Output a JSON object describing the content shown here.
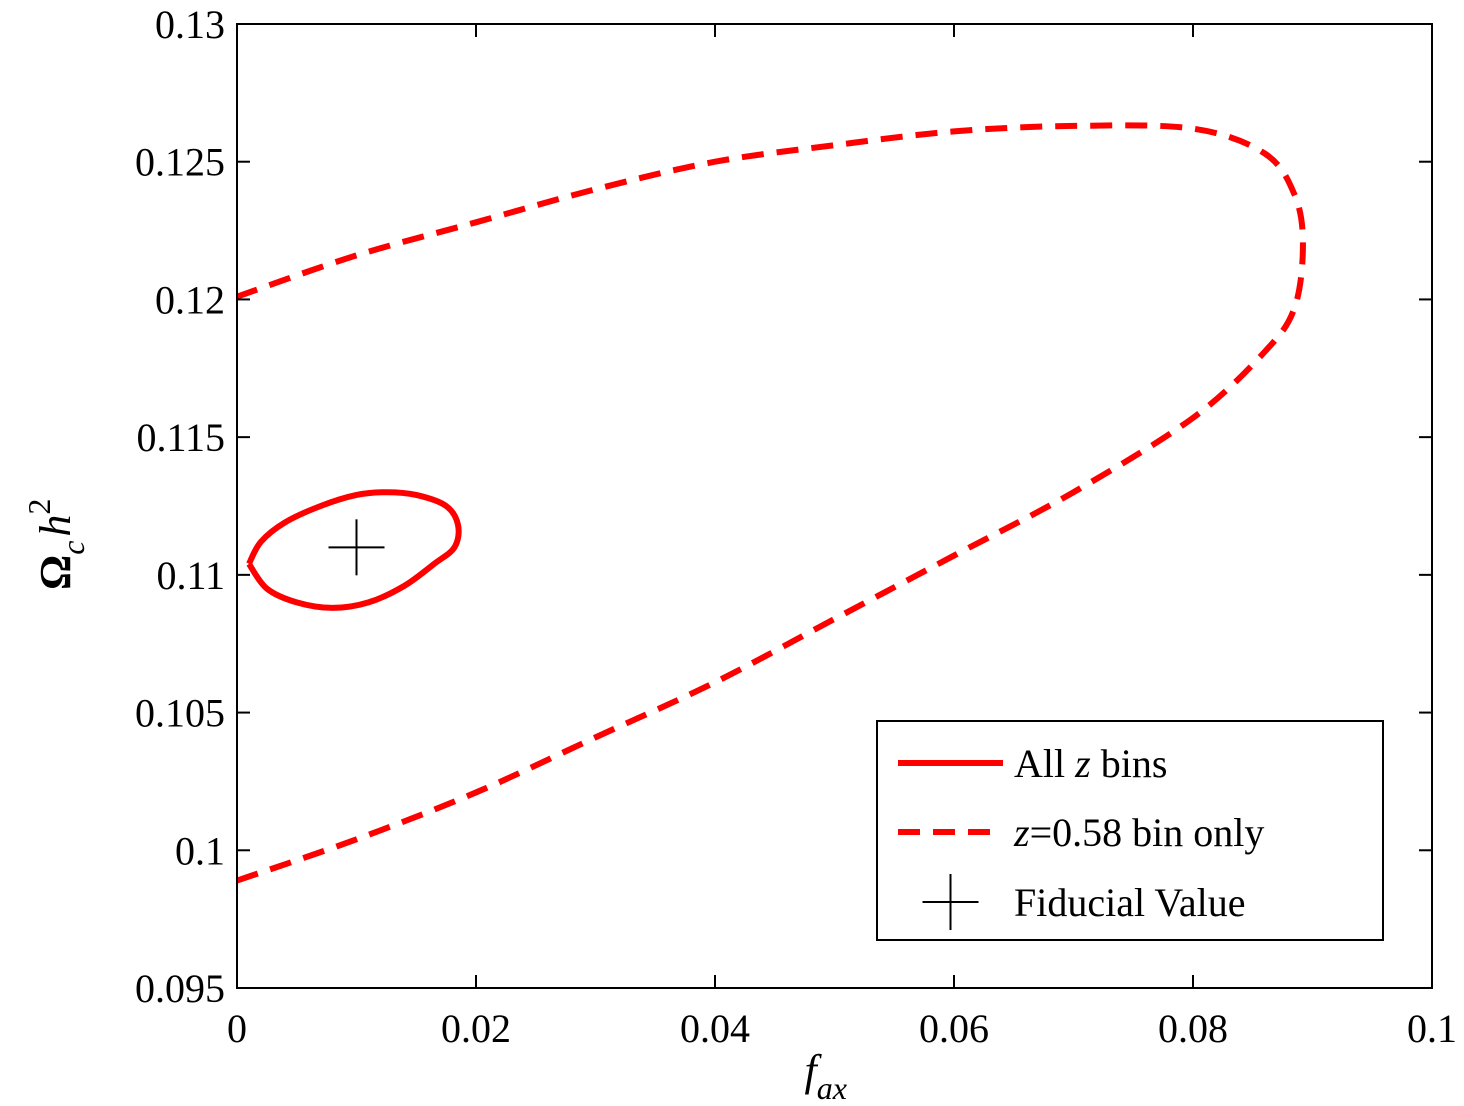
{
  "chart_data": {
    "type": "line",
    "xlabel": {
      "main": "f",
      "sub": "ax"
    },
    "ylabel": {
      "main": "Ω",
      "sub": "c",
      "tail": "h",
      "sup": "2"
    },
    "xlim": [
      0,
      0.1
    ],
    "ylim": [
      0.095,
      0.13
    ],
    "xticks": [
      0,
      0.02,
      0.04,
      0.06,
      0.08,
      0.1
    ],
    "xtick_labels": [
      "0",
      "0.02",
      "0.04",
      "0.06",
      "0.08",
      "0.1"
    ],
    "yticks": [
      0.095,
      0.1,
      0.105,
      0.11,
      0.115,
      0.12,
      0.125,
      0.13
    ],
    "ytick_labels": [
      "0.095",
      "0.1",
      "0.105",
      "0.11",
      "0.115",
      "0.12",
      "0.125",
      "0.13"
    ],
    "grid": false,
    "legend_position": "bottom-right",
    "series": [
      {
        "legend_parts": [
          "All ",
          "z",
          " bins"
        ],
        "style": "solid",
        "color": "#ff0000",
        "x": [
          0.001,
          0.0025,
          0.005,
          0.008,
          0.011,
          0.014,
          0.0165,
          0.0182,
          0.0185,
          0.0175,
          0.015,
          0.0125,
          0.01,
          0.007,
          0.004,
          0.002,
          0.001
        ],
        "y": [
          0.1104,
          0.1095,
          0.109,
          0.1088,
          0.109,
          0.1096,
          0.1104,
          0.111,
          0.1118,
          0.1125,
          0.1129,
          0.113,
          0.1129,
          0.1125,
          0.1119,
          0.1112,
          0.1104
        ]
      },
      {
        "legend_parts": [
          "z",
          "=0.58 bin only"
        ],
        "style": "dashed",
        "color": "#ff0000",
        "x": [
          0.0,
          0.01,
          0.02,
          0.03,
          0.04,
          0.05,
          0.06,
          0.07,
          0.08,
          0.086,
          0.0885,
          0.0892,
          0.0885,
          0.086,
          0.08,
          0.07,
          0.06,
          0.05,
          0.04,
          0.03,
          0.02,
          0.01,
          0.0
        ],
        "y": [
          0.0989,
          0.1004,
          0.1021,
          0.1041,
          0.1061,
          0.1084,
          0.1107,
          0.113,
          0.1157,
          0.1181,
          0.1197,
          0.122,
          0.1238,
          0.1253,
          0.1262,
          0.1263,
          0.1261,
          0.1256,
          0.125,
          0.124,
          0.1228,
          0.1216,
          0.1201
        ]
      }
    ],
    "markers": [
      {
        "label": "Fiducial Value",
        "symbol": "+",
        "color": "#000000",
        "x": 0.01,
        "y": 0.111
      }
    ]
  }
}
